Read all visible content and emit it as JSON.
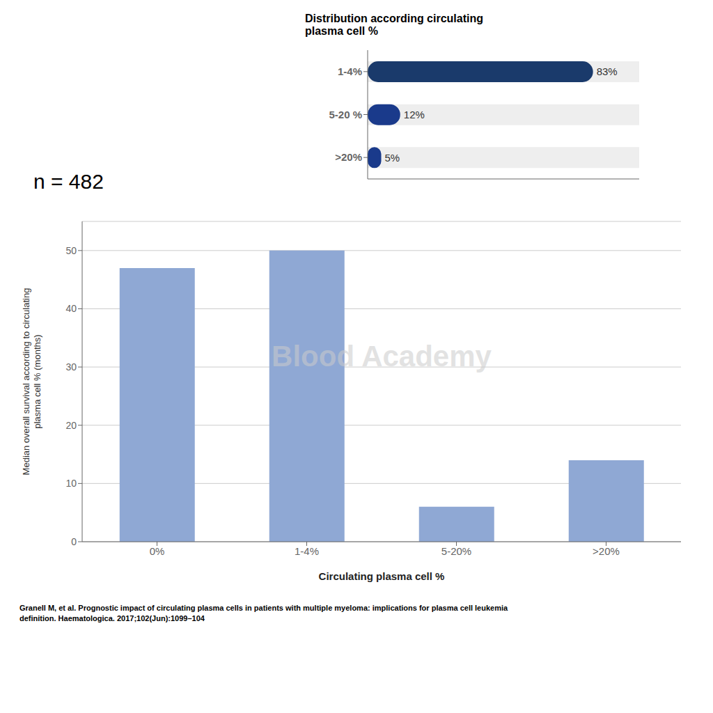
{
  "chart_data": [
    {
      "type": "bar",
      "orientation": "horizontal",
      "title": "Distribution according circulating\nplasma cell %",
      "categories": [
        "1-4%",
        "5-20 %",
        ">20%"
      ],
      "values": [
        83,
        12,
        5
      ],
      "value_labels": [
        "83%",
        "12%",
        "5%"
      ],
      "colors": [
        "#1a3a6b",
        "#1a3a8b",
        "#1a3a8b"
      ],
      "xlim": [
        0,
        100
      ],
      "data_labels": true,
      "tick_labels": "y"
    },
    {
      "type": "bar",
      "categories": [
        "0%",
        "1-4%",
        "5-20%",
        ">20%"
      ],
      "values": [
        47,
        50,
        6,
        14
      ],
      "color": "#8fa8d4",
      "xlabel": "Circulating plasma cell %",
      "ylabel": "Median overall survival according to circulating\nplasma cell % (months)",
      "ylim": [
        0,
        55
      ],
      "yticks": [
        0,
        10,
        20,
        30,
        40,
        50
      ],
      "grid": true,
      "annotations": [
        "n = 482",
        "Blood Academy",
        "Granell M, et al. Prognostic impact of circulating plasma cells in patients with multiple myeloma: implications for plasma cell leukemia\ndefinition. Haematologica. 2017;102(Jun):1099–104"
      ]
    }
  ]
}
